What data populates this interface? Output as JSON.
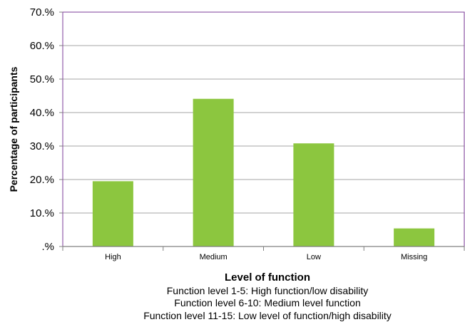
{
  "chart_data": {
    "type": "bar",
    "categories": [
      "High",
      "Medium",
      "Low",
      "Missing"
    ],
    "values": [
      19.5,
      44.1,
      30.8,
      5.4
    ],
    "xlabel": "Level of function",
    "ylabel": "Percentage of participants",
    "ylim": [
      0,
      70
    ],
    "yticks": [
      0,
      10,
      20,
      30,
      40,
      50,
      60,
      70
    ],
    "ytick_labels": [
      ".%",
      "10.%",
      "20.%",
      "30.%",
      "40.%",
      "50.%",
      "60.%",
      "70.%"
    ],
    "notes": [
      "Function level 1-5: High function/low disability",
      "Function level 6-10: Medium level function",
      "Function level 11-15: Low level of function/high disability"
    ],
    "grid": true,
    "legend": "none",
    "colors": {
      "bar": "#8cc63f",
      "frame": "#7d3c98",
      "grid": "#a6a6a6"
    }
  }
}
